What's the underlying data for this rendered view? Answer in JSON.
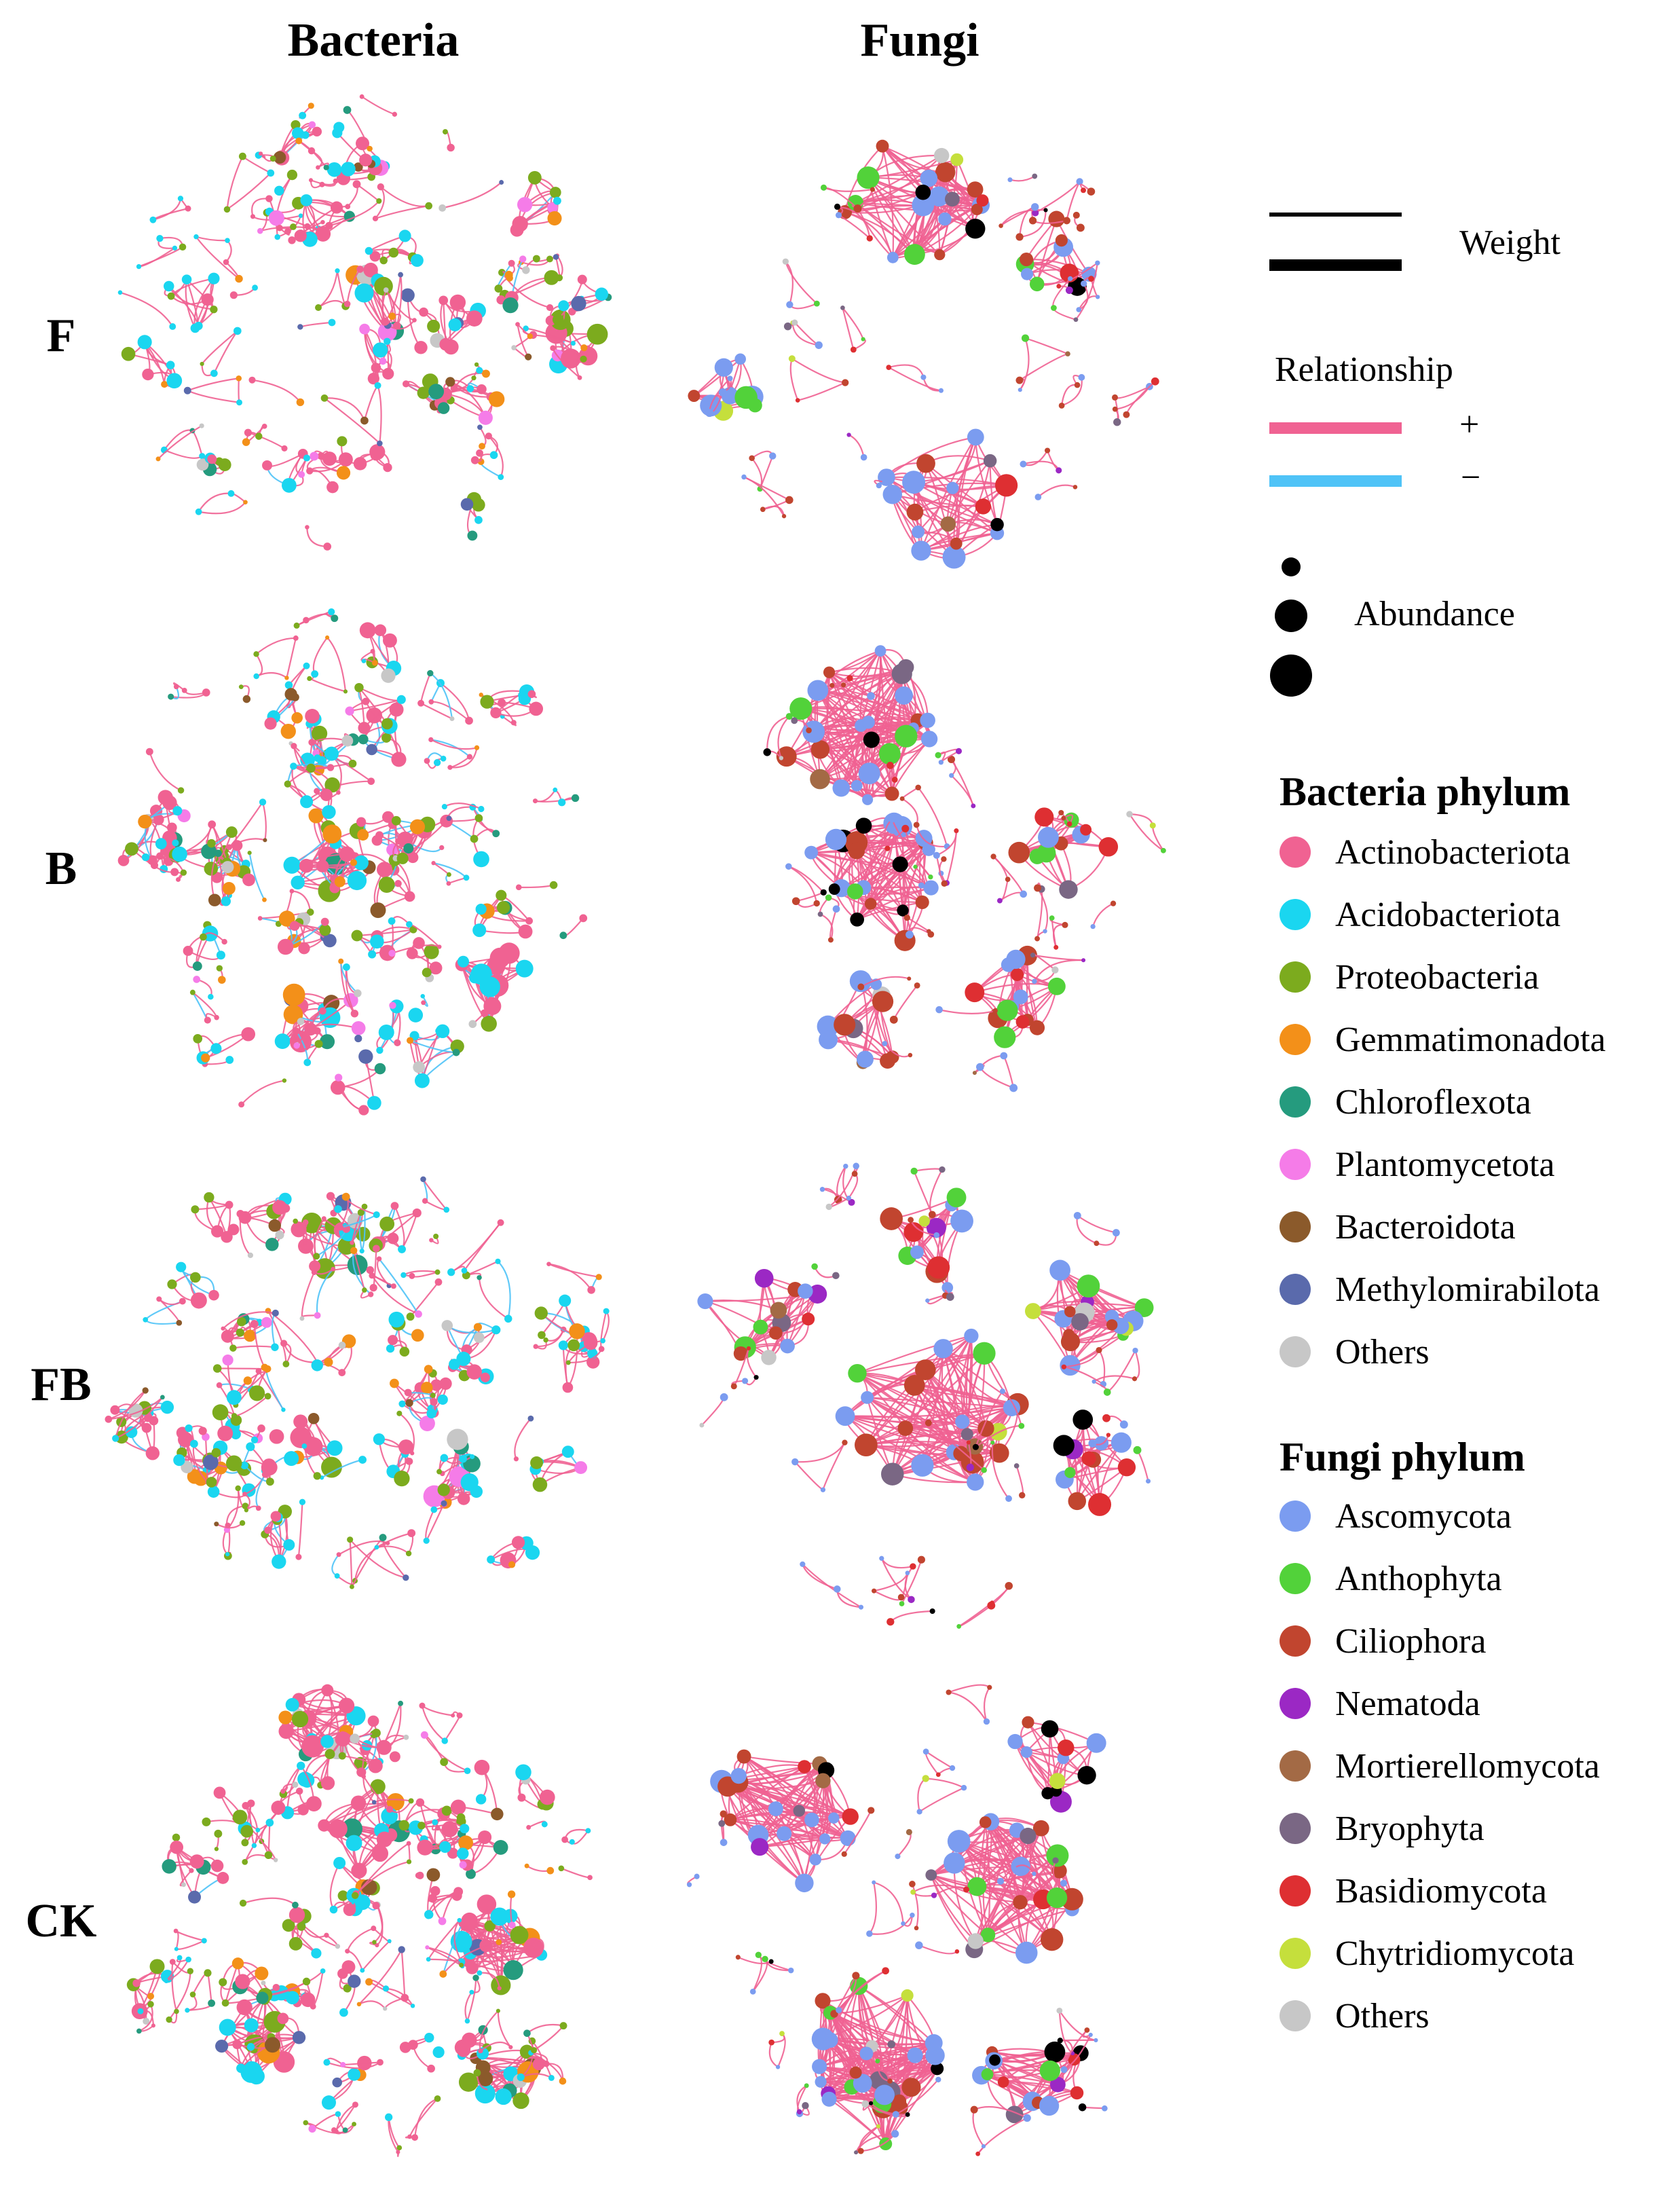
{
  "columns": [
    "Bacteria",
    "Fungi"
  ],
  "rows": [
    "F",
    "B",
    "FB",
    "CK"
  ],
  "legend": {
    "weight_label": "Weight",
    "relationship_label": "Relationship",
    "positive_symbol": "+",
    "negative_symbol": "−",
    "positive_color": "#f06292",
    "negative_color": "#4fc3f7",
    "abundance_label": "Abundance",
    "bacteria_title": "Bacteria phylum",
    "bacteria": [
      {
        "name": "Actinobacteriota",
        "color": "#f06292"
      },
      {
        "name": "Acidobacteriota",
        "color": "#1ad6f0"
      },
      {
        "name": "Proteobacteria",
        "color": "#7cab1e"
      },
      {
        "name": "Gemmatimonadota",
        "color": "#f39019"
      },
      {
        "name": "Chloroflexota",
        "color": "#259b7e"
      },
      {
        "name": "Plantomycetota",
        "color": "#f57ce8"
      },
      {
        "name": "Bacteroidota",
        "color": "#8b5a2b"
      },
      {
        "name": "Methylomirabilota",
        "color": "#5a6aac"
      },
      {
        "name": "Others",
        "color": "#c7c7c7"
      }
    ],
    "fungi_title": "Fungi phylum",
    "fungi": [
      {
        "name": "Ascomycota",
        "color": "#7b9cf0"
      },
      {
        "name": "Anthophyta",
        "color": "#52d23a"
      },
      {
        "name": "Ciliophora",
        "color": "#c1452f"
      },
      {
        "name": "Nematoda",
        "color": "#9b28c4"
      },
      {
        "name": "Mortierellomycota",
        "color": "#a36a45"
      },
      {
        "name": "Bryophyta",
        "color": "#7a6784"
      },
      {
        "name": "Basidiomycota",
        "color": "#de2f32"
      },
      {
        "name": "Chytridiomycota",
        "color": "#c5df3c"
      },
      {
        "name": "Others",
        "color": "#c7c7c7"
      }
    ]
  }
}
